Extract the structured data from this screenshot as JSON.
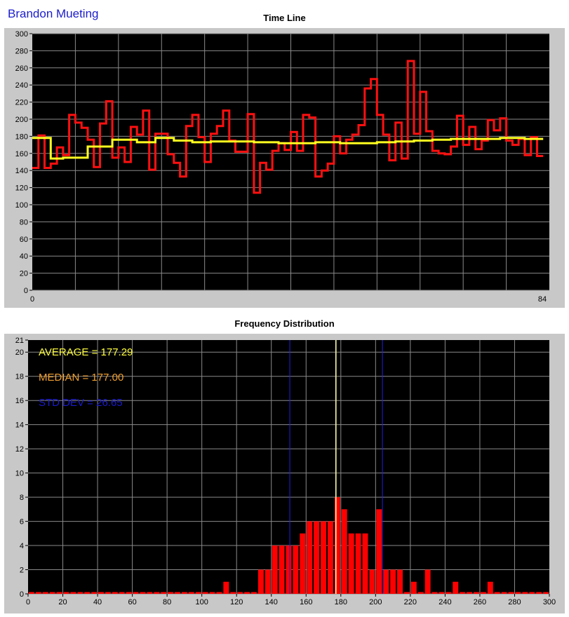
{
  "header": {
    "name": "Brandon Mueting"
  },
  "colors": {
    "frame": "#c8c8c8",
    "plot_bg": "#000000",
    "grid": "#8a8a8a",
    "timeline_line": "#ff1010",
    "running_avg_line": "#ffff20",
    "bar": "#ff0000",
    "average_text": "#ffff40",
    "median_text": "#f0a030",
    "stddev_text": "#1a1ad0",
    "std_lines": "#2020e0",
    "avg_line": "#ffff80",
    "median_line": "#e0e0e0"
  },
  "chart_data": [
    {
      "type": "line",
      "title": "Time Line",
      "xlim": [
        0,
        84
      ],
      "ylim": [
        0,
        300
      ],
      "x_tick_labels": [
        "0",
        "84"
      ],
      "y_ticks": [
        0,
        20,
        40,
        60,
        80,
        100,
        120,
        140,
        160,
        180,
        200,
        220,
        240,
        260,
        280,
        300
      ],
      "grid": true,
      "step": true,
      "series": [
        {
          "color": "#ff1010",
          "values": [
            143,
            181,
            143,
            148,
            167,
            158,
            205,
            196,
            190,
            176,
            144,
            195,
            221,
            155,
            167,
            150,
            191,
            182,
            210,
            141,
            183,
            183,
            159,
            149,
            133,
            192,
            205,
            179,
            150,
            183,
            192,
            210,
            175,
            162,
            162,
            206,
            114,
            149,
            141,
            163,
            172,
            164,
            185,
            163,
            205,
            202,
            133,
            140,
            148,
            180,
            160,
            176,
            182,
            193,
            236,
            247,
            205,
            182,
            152,
            196,
            154,
            268,
            183,
            232,
            186,
            163,
            160,
            159,
            168,
            204,
            170,
            191,
            165,
            175,
            199,
            187,
            201,
            175,
            170,
            177,
            158,
            179,
            157
          ]
        },
        {
          "color": "#ffff20",
          "values": [
            178,
            178,
            178,
            154,
            154,
            155,
            155,
            155,
            155,
            168,
            168,
            168,
            168,
            176,
            176,
            176,
            176,
            173,
            173,
            173,
            178,
            178,
            178,
            175,
            175,
            175,
            173,
            173,
            173,
            174,
            174,
            174,
            174,
            174,
            174,
            174,
            173,
            173,
            173,
            173,
            172,
            172,
            172,
            172,
            172,
            172,
            173,
            173,
            173,
            173,
            172,
            172,
            172,
            172,
            172,
            172,
            173,
            173,
            173,
            174,
            174,
            174,
            175,
            175,
            175,
            176,
            176,
            176,
            177,
            177,
            177,
            177,
            177,
            177,
            177,
            177,
            178,
            178,
            178,
            178,
            177,
            177,
            177
          ]
        }
      ]
    },
    {
      "type": "bar",
      "title": "Frequency Distribution",
      "xlim": [
        0,
        300
      ],
      "ylim": [
        0,
        21
      ],
      "x_ticks": [
        0,
        20,
        40,
        60,
        80,
        100,
        120,
        140,
        160,
        180,
        200,
        220,
        240,
        260,
        280,
        300
      ],
      "y_ticks": [
        0,
        2,
        4,
        6,
        8,
        10,
        12,
        14,
        16,
        18,
        20,
        21
      ],
      "grid": true,
      "bin_width": 4,
      "bars": [
        {
          "x": 114,
          "value": 1
        },
        {
          "x": 134,
          "value": 2
        },
        {
          "x": 138,
          "value": 2
        },
        {
          "x": 142,
          "value": 4
        },
        {
          "x": 146,
          "value": 4
        },
        {
          "x": 150,
          "value": 4
        },
        {
          "x": 154,
          "value": 4
        },
        {
          "x": 158,
          "value": 5
        },
        {
          "x": 162,
          "value": 6
        },
        {
          "x": 166,
          "value": 6
        },
        {
          "x": 170,
          "value": 6
        },
        {
          "x": 174,
          "value": 6
        },
        {
          "x": 178,
          "value": 8
        },
        {
          "x": 182,
          "value": 7
        },
        {
          "x": 186,
          "value": 5
        },
        {
          "x": 190,
          "value": 5
        },
        {
          "x": 194,
          "value": 5
        },
        {
          "x": 198,
          "value": 2
        },
        {
          "x": 202,
          "value": 7
        },
        {
          "x": 206,
          "value": 2
        },
        {
          "x": 210,
          "value": 2
        },
        {
          "x": 214,
          "value": 2
        },
        {
          "x": 222,
          "value": 1
        },
        {
          "x": 230,
          "value": 2
        },
        {
          "x": 246,
          "value": 1
        },
        {
          "x": 266,
          "value": 1
        }
      ],
      "baseline_value": 0.15,
      "vertical_lines": [
        {
          "x": 150.64,
          "color": "#2020e0"
        },
        {
          "x": 177.0,
          "color": "#e0e0e0"
        },
        {
          "x": 177.29,
          "color": "#ffff80"
        },
        {
          "x": 203.94,
          "color": "#2020e0"
        }
      ],
      "annotations": [
        {
          "text": "AVERAGE = 177.29",
          "color": "#ffff40"
        },
        {
          "text": "MEDIAN = 177.00",
          "color": "#f0a030"
        },
        {
          "text": "STD DEV = 26.65",
          "color": "#1a1ad0"
        }
      ]
    }
  ]
}
